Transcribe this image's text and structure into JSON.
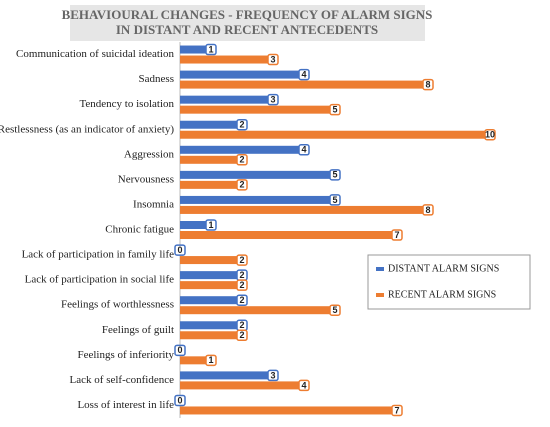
{
  "chart_data": {
    "type": "bar",
    "orientation": "horizontal",
    "title": [
      "BEHAVIOURAL CHANGES - FREQUENCY OF ALARM SIGNS",
      "IN DISTANT AND RECENT ANTECEDENTS"
    ],
    "categories": [
      "Communication of suicidal ideation",
      "Sadness",
      "Tendency to isolation",
      "Restlessness (as an indicator of anxiety)",
      "Aggression",
      "Nervousness",
      "Insomnia",
      "Chronic fatigue",
      "Lack of participation in family life",
      "Lack of participation in social life",
      "Feelings of worthlessness",
      "Feelings of guilt",
      "Feelings of inferiority",
      "Lack of self-confidence",
      "Loss of interest in life"
    ],
    "series": [
      {
        "name": "DISTANT ALARM SIGNS",
        "color": "#4472c4",
        "values": [
          1,
          4,
          3,
          2,
          4,
          5,
          5,
          1,
          0,
          2,
          2,
          2,
          0,
          3,
          0
        ]
      },
      {
        "name": "RECENT ALARM SIGNS",
        "color": "#ed7d31",
        "values": [
          3,
          8,
          5,
          10,
          2,
          2,
          8,
          7,
          2,
          2,
          5,
          2,
          1,
          4,
          7
        ]
      }
    ],
    "xlim": [
      0,
      10
    ]
  }
}
